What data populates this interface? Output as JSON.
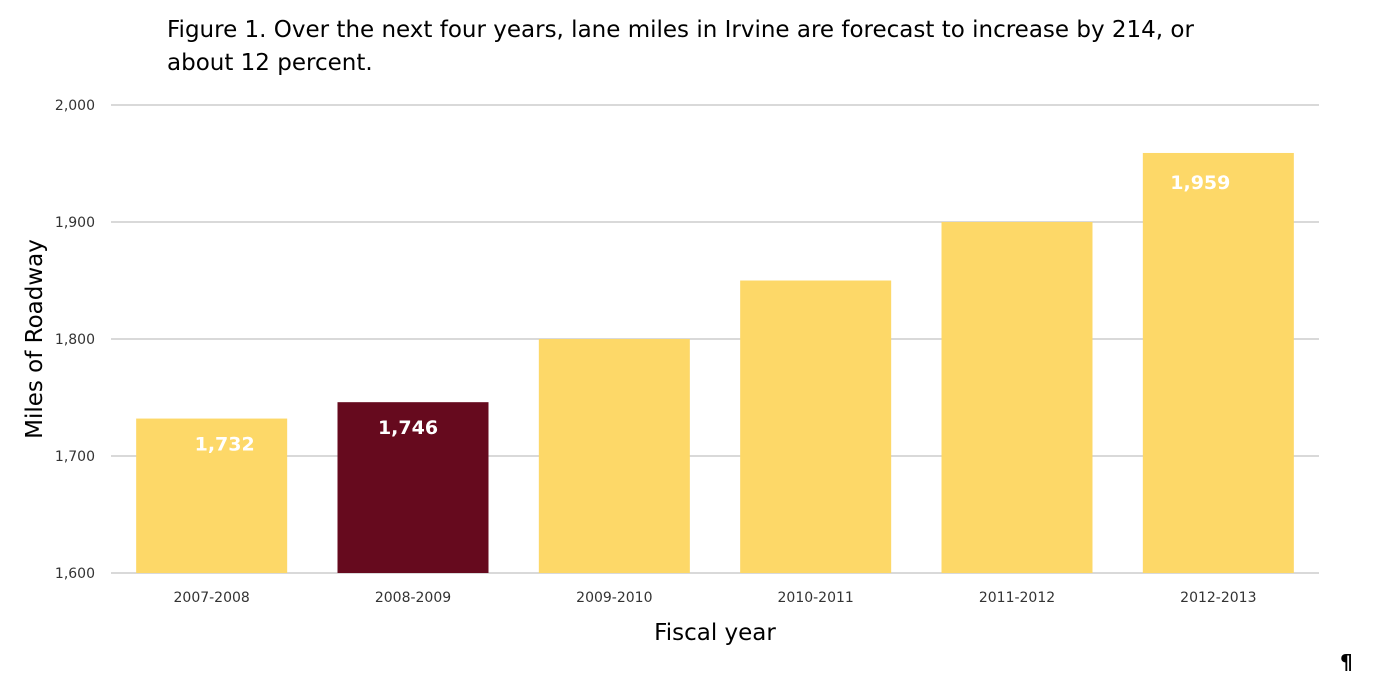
{
  "chart_data": {
    "type": "bar",
    "title": "Figure 1. Over the next four years, lane miles in Irvine are forecast to increase by 214, or about 12 percent.",
    "xlabel": "Fiscal year",
    "ylabel": "Miles of Roadway",
    "categories": [
      "2007-2008",
      "2008-2009",
      "2009-2010",
      "2010-2011",
      "2011-2012",
      "2012-2013"
    ],
    "values": [
      1732,
      1746,
      1800,
      1850,
      1900,
      1959
    ],
    "data_labels": [
      "1,732",
      "1,746",
      "",
      "",
      "",
      "1,959"
    ],
    "highlighted_index": 1,
    "ylim": [
      1600,
      2000
    ],
    "yticks": [
      1600,
      1700,
      1800,
      1900,
      2000
    ],
    "ytick_labels": [
      "1,600",
      "1,700",
      "1,800",
      "1,900",
      "2,000"
    ],
    "grid": true,
    "colors": {
      "bar": "#FDD868",
      "highlight": "#660A1E",
      "grid": "#D9D9D9",
      "label": "#FFFFFF"
    }
  },
  "footer": {
    "pilcrow": "¶"
  }
}
